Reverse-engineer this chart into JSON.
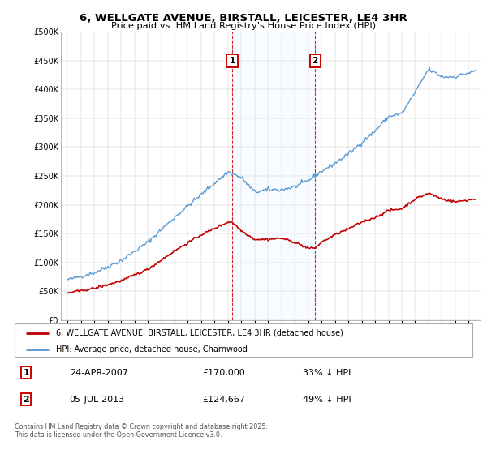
{
  "title": "6, WELLGATE AVENUE, BIRSTALL, LEICESTER, LE4 3HR",
  "subtitle": "Price paid vs. HM Land Registry's House Price Index (HPI)",
  "ylabel_ticks": [
    "£0",
    "£50K",
    "£100K",
    "£150K",
    "£200K",
    "£250K",
    "£300K",
    "£350K",
    "£400K",
    "£450K",
    "£500K"
  ],
  "ylim": [
    0,
    500000
  ],
  "yticks": [
    0,
    50000,
    100000,
    150000,
    200000,
    250000,
    300000,
    350000,
    400000,
    450000,
    500000
  ],
  "sale1_date": "24-APR-2007",
  "sale1_price": 170000,
  "sale1_year": 2007.31,
  "sale1_pct": "33% ↓ HPI",
  "sale2_date": "05-JUL-2013",
  "sale2_price": 124667,
  "sale2_year": 2013.51,
  "sale2_pct": "49% ↓ HPI",
  "legend_property": "6, WELLGATE AVENUE, BIRSTALL, LEICESTER, LE4 3HR (detached house)",
  "legend_hpi": "HPI: Average price, detached house, Charnwood",
  "footer": "Contains HM Land Registry data © Crown copyright and database right 2025.\nThis data is licensed under the Open Government Licence v3.0.",
  "hpi_color": "#5b9bd5",
  "property_color": "#c00000",
  "shade_color": "#ddeeff",
  "marker_box_color": "#cc0000",
  "xlim_left": 1994.5,
  "xlim_right": 2025.9
}
